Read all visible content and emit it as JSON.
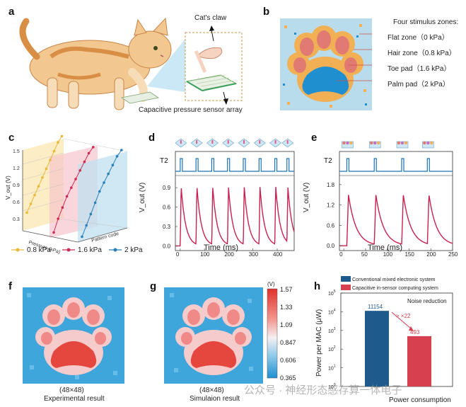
{
  "panels": {
    "a": {
      "letter": "a",
      "claw_label": "Cat's claw",
      "sensor_label": "Capacitive pressure sensor array"
    },
    "b": {
      "letter": "b",
      "zones_title": "Four stimulus zones:",
      "zones": [
        {
          "label": "Flat zone（0 kPa）"
        },
        {
          "label": "Hair zone（0.8 kPa）"
        },
        {
          "label": "Toe pad（1.6 kPa）"
        },
        {
          "label": "Palm pad（2 kPa）"
        }
      ],
      "colors": {
        "background": "#b8dcec",
        "hair": "#f2b055",
        "toe": "#e07a72",
        "palm": "#1f8fd0"
      }
    },
    "c": {
      "letter": "c",
      "ylabel": "V_out (V)",
      "xlabel": "Pressure (kPa)",
      "zlabel": "Pattern code"
    },
    "d": {
      "letter": "d",
      "trace_label": "T2",
      "ylabel": "V_out (V)",
      "xlabel": "Time (ms)"
    },
    "e": {
      "letter": "e",
      "trace_label": "T2",
      "ylabel": "V_out (V)",
      "xlabel": "Time (ms)"
    },
    "f": {
      "letter": "f",
      "size": "(48×48)",
      "caption": "Experimental  result"
    },
    "g": {
      "letter": "g",
      "size": "(48×48)",
      "caption": "Simulaion result",
      "colorbar_unit": "(V)",
      "colorbar_ticks": [
        "1.57",
        "1.33",
        "1.09",
        "0.847",
        "0.606",
        "0.365"
      ]
    },
    "h": {
      "letter": "h",
      "annotation": "Noise reduction",
      "ratio_label": "> ×22",
      "ylabel": "Power per MAC (μW)",
      "xlabel": "Power consumption"
    }
  },
  "watermark": "公众号 · 神经形态感存算一体电子",
  "chart_data": [
    {
      "id": "c",
      "type": "line",
      "ylabel": "V_out (V)",
      "xlabel": "Pressure (kPa)",
      "yticks": [
        "0.3",
        "0.6",
        "0.9",
        "1.2",
        "1.5"
      ],
      "series": [
        {
          "name": "0.8 kPa",
          "color": "#e8b93a",
          "values": [
            0.3,
            0.45,
            0.6,
            0.75,
            0.9,
            1.05,
            1.2,
            1.35,
            1.5,
            1.6
          ]
        },
        {
          "name": "1.6 kPa",
          "color": "#cc2b55",
          "values": [
            0.05,
            0.3,
            0.5,
            0.7,
            0.85,
            1.0,
            1.15,
            1.3,
            1.45,
            1.55
          ]
        },
        {
          "name": "2 kPa",
          "color": "#2a7fb8",
          "values": [
            0.05,
            0.25,
            0.45,
            0.65,
            0.85,
            1.0,
            1.15,
            1.3,
            1.45,
            1.55
          ]
        }
      ]
    },
    {
      "id": "d",
      "type": "line",
      "xlabel": "Time (ms)",
      "ylabel": "V_out (V)",
      "xlim": [
        -20,
        470
      ],
      "ylim": [
        -0.05,
        1.0
      ],
      "xticks": [
        0,
        100,
        200,
        300,
        400
      ],
      "yticks": [
        "0.0",
        "0.3",
        "0.6",
        "0.9"
      ],
      "pulse_times": [
        0,
        65,
        130,
        195,
        260,
        325,
        390,
        440
      ],
      "peak": 0.92,
      "baseline": 0.0
    },
    {
      "id": "e",
      "type": "line",
      "xlabel": "Time (ms)",
      "ylabel": "V_out (V)",
      "xlim": [
        -10,
        250
      ],
      "ylim": [
        -0.1,
        1.9
      ],
      "xticks": [
        0,
        50,
        100,
        150,
        200,
        250
      ],
      "yticks": [
        "0.0",
        "0.6",
        "1.2",
        "1.8"
      ],
      "pulse_times": [
        7,
        70,
        133,
        192
      ],
      "peak": 1.5,
      "baseline": 0.0
    },
    {
      "id": "h",
      "type": "bar",
      "ylabel": "Power per MAC (μW)",
      "xlabel": "Power consumption",
      "scale": "log",
      "ylim": [
        1,
        100000
      ],
      "series": [
        {
          "name": "Conventional mixed electronic system",
          "value": 11154,
          "label": "11154",
          "color": "#1f5a8c"
        },
        {
          "name": "Capacitive in-sensor computing system",
          "value": 493,
          "label": "493",
          "color": "#d6404f"
        }
      ]
    }
  ]
}
